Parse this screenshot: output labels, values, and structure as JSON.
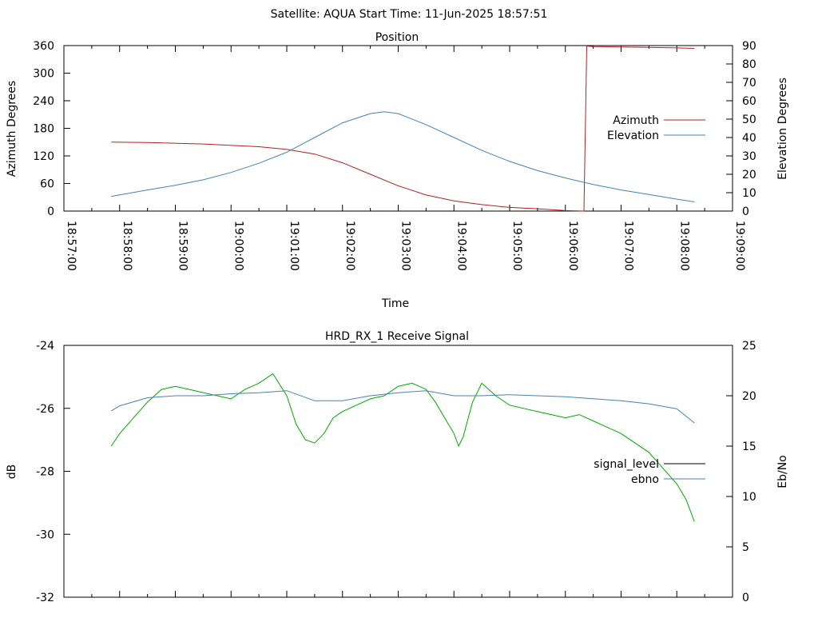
{
  "title": "Satellite: AQUA    Start Time: 11-Jun-2025 18:57:51",
  "chart_data": [
    {
      "type": "line",
      "title": "Position",
      "xlabel": "Time",
      "ylabel": "Azimuth Degrees",
      "y2label": "Elevation Degrees",
      "xlim": [
        "18:57:00",
        "19:09:00"
      ],
      "ylim": [
        0,
        360
      ],
      "y2lim": [
        0,
        90
      ],
      "x_ticks": [
        "18:57:00",
        "18:58:00",
        "18:59:00",
        "19:00:00",
        "19:01:00",
        "19:02:00",
        "19:03:00",
        "19:04:00",
        "19:05:00",
        "19:06:00",
        "19:07:00",
        "19:08:00",
        "19:09:00"
      ],
      "y_ticks": [
        "0",
        "60",
        "120",
        "180",
        "240",
        "300",
        "360"
      ],
      "y2_ticks": [
        "0",
        "10",
        "20",
        "30",
        "40",
        "50",
        "60",
        "70",
        "80",
        "90"
      ],
      "grid": false,
      "legend_position": "right",
      "series": [
        {
          "name": "Azimuth",
          "axis": "left",
          "color": "#b22222",
          "x": [
            "18:57:51",
            "18:58:30",
            "18:59:30",
            "19:00:30",
            "19:01:00",
            "19:01:30",
            "19:02:00",
            "19:02:30",
            "19:03:00",
            "19:03:30",
            "19:04:00",
            "19:04:30",
            "19:05:00",
            "19:05:30",
            "19:06:00",
            "19:06:20",
            "19:06:23",
            "19:06:30",
            "19:07:00",
            "19:07:30",
            "19:08:00",
            "19:08:19"
          ],
          "values": [
            150,
            149,
            146,
            140,
            134,
            124,
            105,
            80,
            55,
            35,
            22,
            14,
            8,
            5,
            1,
            0,
            359,
            358,
            357,
            356,
            355,
            354
          ]
        },
        {
          "name": "Elevation",
          "axis": "right",
          "color": "#4682b4",
          "x": [
            "18:57:51",
            "18:58:30",
            "18:59:00",
            "18:59:30",
            "19:00:00",
            "19:00:30",
            "19:01:00",
            "19:01:30",
            "19:02:00",
            "19:02:30",
            "19:02:45",
            "19:03:00",
            "19:03:30",
            "19:04:00",
            "19:04:30",
            "19:05:00",
            "19:05:30",
            "19:06:00",
            "19:06:30",
            "19:07:00",
            "19:07:30",
            "19:08:00",
            "19:08:19"
          ],
          "values": [
            8,
            11.5,
            14,
            17,
            21,
            26,
            32,
            40,
            48,
            53,
            54,
            53,
            47,
            40,
            33,
            27,
            22,
            18,
            14.5,
            11.5,
            9,
            6.5,
            5
          ]
        }
      ]
    },
    {
      "type": "line",
      "title": "HRD_RX_1 Receive Signal",
      "xlabel": "",
      "ylabel": "dB",
      "y2label": "Eb/No",
      "xlim": [
        "18:57:00",
        "19:09:00"
      ],
      "ylim": [
        -32,
        -24
      ],
      "y2lim": [
        0,
        25
      ],
      "y_ticks": [
        "-24",
        "-26",
        "-28",
        "-30",
        "-32"
      ],
      "y2_ticks": [
        "0",
        "5",
        "10",
        "15",
        "20",
        "25"
      ],
      "grid": false,
      "legend_position": "right",
      "series": [
        {
          "name": "signal_level",
          "axis": "left",
          "color": "#00aa00",
          "legend_color": "#000000",
          "x": [
            "18:57:51",
            "18:58:00",
            "18:58:15",
            "18:58:30",
            "18:58:45",
            "18:59:00",
            "18:59:15",
            "18:59:30",
            "18:59:45",
            "19:00:00",
            "19:00:15",
            "19:00:30",
            "19:00:45",
            "19:01:00",
            "19:01:10",
            "19:01:20",
            "19:01:30",
            "19:01:40",
            "19:01:50",
            "19:02:00",
            "19:02:15",
            "19:02:30",
            "19:02:45",
            "19:03:00",
            "19:03:15",
            "19:03:30",
            "19:03:40",
            "19:03:50",
            "19:04:00",
            "19:04:05",
            "19:04:10",
            "19:04:20",
            "19:04:30",
            "19:04:45",
            "19:05:00",
            "19:05:15",
            "19:05:30",
            "19:05:45",
            "19:06:00",
            "19:06:15",
            "19:06:30",
            "19:06:45",
            "19:07:00",
            "19:07:15",
            "19:07:30",
            "19:07:45",
            "19:08:00",
            "19:08:10",
            "19:08:19"
          ],
          "values": [
            -27.2,
            -26.8,
            -26.3,
            -25.8,
            -25.4,
            -25.3,
            -25.4,
            -25.5,
            -25.6,
            -25.7,
            -25.4,
            -25.2,
            -24.9,
            -25.6,
            -26.5,
            -27.0,
            -27.1,
            -26.8,
            -26.3,
            -26.1,
            -25.9,
            -25.7,
            -25.6,
            -25.3,
            -25.2,
            -25.4,
            -25.8,
            -26.3,
            -26.8,
            -27.2,
            -26.9,
            -25.8,
            -25.2,
            -25.6,
            -25.9,
            -26.0,
            -26.1,
            -26.2,
            -26.3,
            -26.2,
            -26.4,
            -26.6,
            -26.8,
            -27.1,
            -27.4,
            -27.9,
            -28.4,
            -28.9,
            -29.6
          ]
        },
        {
          "name": "ebno",
          "axis": "right",
          "color": "#4682b4",
          "x": [
            "18:57:51",
            "18:58:00",
            "18:58:30",
            "18:59:00",
            "18:59:30",
            "19:00:00",
            "19:00:30",
            "19:01:00",
            "19:01:30",
            "19:02:00",
            "19:02:30",
            "19:03:00",
            "19:03:30",
            "19:04:00",
            "19:04:30",
            "19:05:00",
            "19:05:30",
            "19:06:00",
            "19:06:30",
            "19:07:00",
            "19:07:30",
            "19:08:00",
            "19:08:19"
          ],
          "values": [
            18.5,
            19.0,
            19.8,
            20.0,
            20.0,
            20.2,
            20.3,
            20.5,
            19.5,
            19.5,
            20.0,
            20.3,
            20.5,
            20.0,
            20.0,
            20.1,
            20.0,
            19.9,
            19.7,
            19.5,
            19.2,
            18.7,
            17.3
          ]
        }
      ]
    }
  ]
}
